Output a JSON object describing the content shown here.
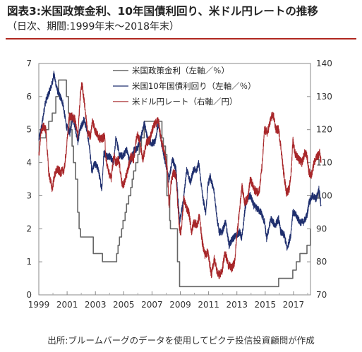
{
  "header": {
    "title": "図表3:米国政策金利、10年国債利回り、米ドル円レートの推移",
    "subtitle": "（日次、期間:1999年末～2018年末）"
  },
  "footer": {
    "source": "出所:ブルームバーグのデータを使用してピクテ投信投資顧問が作成"
  },
  "colors": {
    "policy": "#666666",
    "yield": "#1f2f6e",
    "fx": "#a8272a",
    "rule": "#b0271f"
  },
  "chart_data": {
    "type": "line",
    "x_ticks": [
      "1999",
      "2001",
      "2003",
      "2005",
      "2007",
      "2009",
      "2011",
      "2013",
      "2015",
      "2017"
    ],
    "xlim": [
      1999.0,
      2018.2
    ],
    "y_left": {
      "ticks": [
        "0",
        "1",
        "2",
        "3",
        "4",
        "5",
        "6",
        "7"
      ],
      "lim": [
        0,
        7
      ]
    },
    "y_right": {
      "ticks": [
        "70",
        "80",
        "90",
        "100",
        "110",
        "120",
        "130",
        "140"
      ],
      "lim": [
        70,
        140
      ]
    },
    "legend_position": "top-center",
    "series": [
      {
        "name": "米国政策金利（左軸／％）",
        "axis": "left",
        "color": "#666666",
        "step": true,
        "points": [
          [
            1999.0,
            4.75
          ],
          [
            1999.5,
            5.0
          ],
          [
            1999.7,
            5.25
          ],
          [
            1999.95,
            5.5
          ],
          [
            2000.2,
            6.0
          ],
          [
            2000.4,
            6.5
          ],
          [
            2000.95,
            6.0
          ],
          [
            2001.1,
            5.5
          ],
          [
            2001.2,
            5.0
          ],
          [
            2001.35,
            4.5
          ],
          [
            2001.45,
            4.0
          ],
          [
            2001.6,
            3.5
          ],
          [
            2001.75,
            2.5
          ],
          [
            2001.85,
            2.0
          ],
          [
            2001.95,
            1.75
          ],
          [
            2002.85,
            1.25
          ],
          [
            2003.5,
            1.0
          ],
          [
            2004.5,
            1.25
          ],
          [
            2004.6,
            1.5
          ],
          [
            2004.7,
            1.75
          ],
          [
            2004.85,
            2.0
          ],
          [
            2004.95,
            2.25
          ],
          [
            2005.1,
            2.5
          ],
          [
            2005.2,
            2.75
          ],
          [
            2005.35,
            3.0
          ],
          [
            2005.5,
            3.25
          ],
          [
            2005.6,
            3.5
          ],
          [
            2005.7,
            3.75
          ],
          [
            2005.85,
            4.0
          ],
          [
            2006.0,
            4.25
          ],
          [
            2006.1,
            4.5
          ],
          [
            2006.25,
            4.75
          ],
          [
            2006.45,
            5.25
          ],
          [
            2007.7,
            4.75
          ],
          [
            2007.8,
            4.5
          ],
          [
            2007.95,
            4.25
          ],
          [
            2008.05,
            3.0
          ],
          [
            2008.25,
            2.25
          ],
          [
            2008.3,
            2.0
          ],
          [
            2008.8,
            1.0
          ],
          [
            2008.95,
            0.25
          ],
          [
            2015.95,
            0.5
          ],
          [
            2016.95,
            0.75
          ],
          [
            2017.2,
            1.0
          ],
          [
            2017.45,
            1.25
          ],
          [
            2017.95,
            1.5
          ],
          [
            2018.2,
            2.0
          ]
        ]
      },
      {
        "name": "米国10年国債利回り（左軸／％）",
        "axis": "left",
        "color": "#1f2f6e",
        "points": [
          [
            1999.0,
            4.7
          ],
          [
            1999.2,
            5.1
          ],
          [
            1999.45,
            5.8
          ],
          [
            1999.7,
            6.1
          ],
          [
            1999.95,
            6.4
          ],
          [
            2000.05,
            6.7
          ],
          [
            2000.3,
            6.2
          ],
          [
            2000.5,
            6.0
          ],
          [
            2000.7,
            5.8
          ],
          [
            2000.95,
            5.1
          ],
          [
            2001.2,
            4.9
          ],
          [
            2001.4,
            5.4
          ],
          [
            2001.6,
            5.0
          ],
          [
            2001.75,
            4.6
          ],
          [
            2001.9,
            5.0
          ],
          [
            2002.2,
            5.3
          ],
          [
            2002.4,
            5.0
          ],
          [
            2002.6,
            4.4
          ],
          [
            2002.75,
            3.7
          ],
          [
            2002.95,
            4.0
          ],
          [
            2003.2,
            3.8
          ],
          [
            2003.45,
            3.2
          ],
          [
            2003.6,
            4.3
          ],
          [
            2003.8,
            4.2
          ],
          [
            2004.0,
            4.2
          ],
          [
            2004.3,
            4.0
          ],
          [
            2004.45,
            4.8
          ],
          [
            2004.7,
            4.2
          ],
          [
            2004.95,
            4.2
          ],
          [
            2005.2,
            4.4
          ],
          [
            2005.45,
            4.0
          ],
          [
            2005.75,
            4.4
          ],
          [
            2005.95,
            4.4
          ],
          [
            2006.3,
            4.9
          ],
          [
            2006.45,
            5.2
          ],
          [
            2006.7,
            4.7
          ],
          [
            2006.95,
            4.6
          ],
          [
            2007.2,
            4.6
          ],
          [
            2007.45,
            5.2
          ],
          [
            2007.7,
            4.5
          ],
          [
            2007.95,
            4.0
          ],
          [
            2008.2,
            3.5
          ],
          [
            2008.45,
            4.1
          ],
          [
            2008.7,
            3.8
          ],
          [
            2008.95,
            2.2
          ],
          [
            2009.2,
            2.8
          ],
          [
            2009.45,
            3.8
          ],
          [
            2009.7,
            3.4
          ],
          [
            2009.95,
            3.8
          ],
          [
            2010.2,
            3.8
          ],
          [
            2010.3,
            4.0
          ],
          [
            2010.6,
            2.9
          ],
          [
            2010.8,
            2.5
          ],
          [
            2010.95,
            3.3
          ],
          [
            2011.1,
            3.6
          ],
          [
            2011.4,
            3.1
          ],
          [
            2011.6,
            2.3
          ],
          [
            2011.75,
            1.9
          ],
          [
            2011.95,
            1.9
          ],
          [
            2012.2,
            2.2
          ],
          [
            2012.45,
            1.5
          ],
          [
            2012.7,
            1.7
          ],
          [
            2012.95,
            1.8
          ],
          [
            2013.2,
            1.9
          ],
          [
            2013.35,
            1.7
          ],
          [
            2013.6,
            2.7
          ],
          [
            2013.75,
            2.9
          ],
          [
            2013.95,
            3.0
          ],
          [
            2014.2,
            2.7
          ],
          [
            2014.45,
            2.6
          ],
          [
            2014.7,
            2.5
          ],
          [
            2014.95,
            2.2
          ],
          [
            2015.1,
            1.7
          ],
          [
            2015.4,
            2.3
          ],
          [
            2015.7,
            2.1
          ],
          [
            2015.95,
            2.3
          ],
          [
            2016.1,
            1.9
          ],
          [
            2016.35,
            1.8
          ],
          [
            2016.55,
            1.4
          ],
          [
            2016.8,
            1.8
          ],
          [
            2016.95,
            2.5
          ],
          [
            2017.2,
            2.4
          ],
          [
            2017.45,
            2.2
          ],
          [
            2017.7,
            2.2
          ],
          [
            2017.95,
            2.4
          ],
          [
            2018.1,
            2.8
          ],
          [
            2018.35,
            3.0
          ],
          [
            2018.6,
            2.9
          ],
          [
            2018.8,
            3.2
          ],
          [
            2018.95,
            2.7
          ]
        ]
      },
      {
        "name": "米ドル円レート（右軸／円）",
        "axis": "right",
        "color": "#a8272a",
        "points": [
          [
            1999.0,
            112
          ],
          [
            1999.15,
            119
          ],
          [
            1999.3,
            121
          ],
          [
            1999.5,
            120
          ],
          [
            1999.7,
            107
          ],
          [
            1999.95,
            102
          ],
          [
            2000.1,
            106
          ],
          [
            2000.3,
            108
          ],
          [
            2000.55,
            107
          ],
          [
            2000.8,
            108
          ],
          [
            2000.95,
            114
          ],
          [
            2001.15,
            124
          ],
          [
            2001.3,
            124
          ],
          [
            2001.55,
            123
          ],
          [
            2001.75,
            118
          ],
          [
            2001.95,
            131
          ],
          [
            2002.05,
            134
          ],
          [
            2002.25,
            127
          ],
          [
            2002.45,
            119
          ],
          [
            2002.65,
            118
          ],
          [
            2002.8,
            123
          ],
          [
            2002.95,
            120
          ],
          [
            2003.2,
            118
          ],
          [
            2003.4,
            117
          ],
          [
            2003.65,
            118
          ],
          [
            2003.75,
            111
          ],
          [
            2003.95,
            107
          ],
          [
            2004.1,
            105
          ],
          [
            2004.3,
            112
          ],
          [
            2004.45,
            110
          ],
          [
            2004.65,
            111
          ],
          [
            2004.9,
            103
          ],
          [
            2005.05,
            104
          ],
          [
            2005.3,
            108
          ],
          [
            2005.5,
            112
          ],
          [
            2005.7,
            111
          ],
          [
            2005.95,
            119
          ],
          [
            2006.1,
            117
          ],
          [
            2006.35,
            111
          ],
          [
            2006.6,
            116
          ],
          [
            2006.85,
            117
          ],
          [
            2006.95,
            119
          ],
          [
            2007.1,
            121
          ],
          [
            2007.45,
            123
          ],
          [
            2007.6,
            118
          ],
          [
            2007.75,
            115
          ],
          [
            2007.95,
            112
          ],
          [
            2008.1,
            107
          ],
          [
            2008.2,
            97
          ],
          [
            2008.35,
            104
          ],
          [
            2008.5,
            107
          ],
          [
            2008.7,
            106
          ],
          [
            2008.85,
            95
          ],
          [
            2008.95,
            90
          ],
          [
            2009.05,
            89
          ],
          [
            2009.25,
            99
          ],
          [
            2009.45,
            96
          ],
          [
            2009.6,
            95
          ],
          [
            2009.8,
            89
          ],
          [
            2009.95,
            92
          ],
          [
            2010.2,
            91
          ],
          [
            2010.35,
            94
          ],
          [
            2010.55,
            86
          ],
          [
            2010.75,
            82
          ],
          [
            2010.95,
            83
          ],
          [
            2011.2,
            76
          ],
          [
            2011.4,
            81
          ],
          [
            2011.6,
            77
          ],
          [
            2011.75,
            76
          ],
          [
            2011.95,
            77
          ],
          [
            2012.15,
            83
          ],
          [
            2012.4,
            79
          ],
          [
            2012.65,
            78
          ],
          [
            2012.85,
            80
          ],
          [
            2012.95,
            86
          ],
          [
            2013.15,
            94
          ],
          [
            2013.35,
            103
          ],
          [
            2013.55,
            98
          ],
          [
            2013.75,
            99
          ],
          [
            2013.95,
            105
          ],
          [
            2014.2,
            102
          ],
          [
            2014.45,
            101
          ],
          [
            2014.6,
            102
          ],
          [
            2014.8,
            110
          ],
          [
            2014.95,
            120
          ],
          [
            2015.15,
            119
          ],
          [
            2015.45,
            124
          ],
          [
            2015.6,
            124
          ],
          [
            2015.75,
            120
          ],
          [
            2015.95,
            120
          ],
          [
            2016.1,
            115
          ],
          [
            2016.3,
            107
          ],
          [
            2016.5,
            101
          ],
          [
            2016.7,
            102
          ],
          [
            2016.85,
            108
          ],
          [
            2016.95,
            117
          ],
          [
            2017.1,
            113
          ],
          [
            2017.35,
            111
          ],
          [
            2017.6,
            110
          ],
          [
            2017.8,
            113
          ],
          [
            2017.95,
            112
          ],
          [
            2018.1,
            107
          ],
          [
            2018.25,
            106
          ],
          [
            2018.45,
            110
          ],
          [
            2018.7,
            112
          ],
          [
            2018.85,
            113
          ],
          [
            2018.95,
            110
          ]
        ]
      }
    ]
  }
}
